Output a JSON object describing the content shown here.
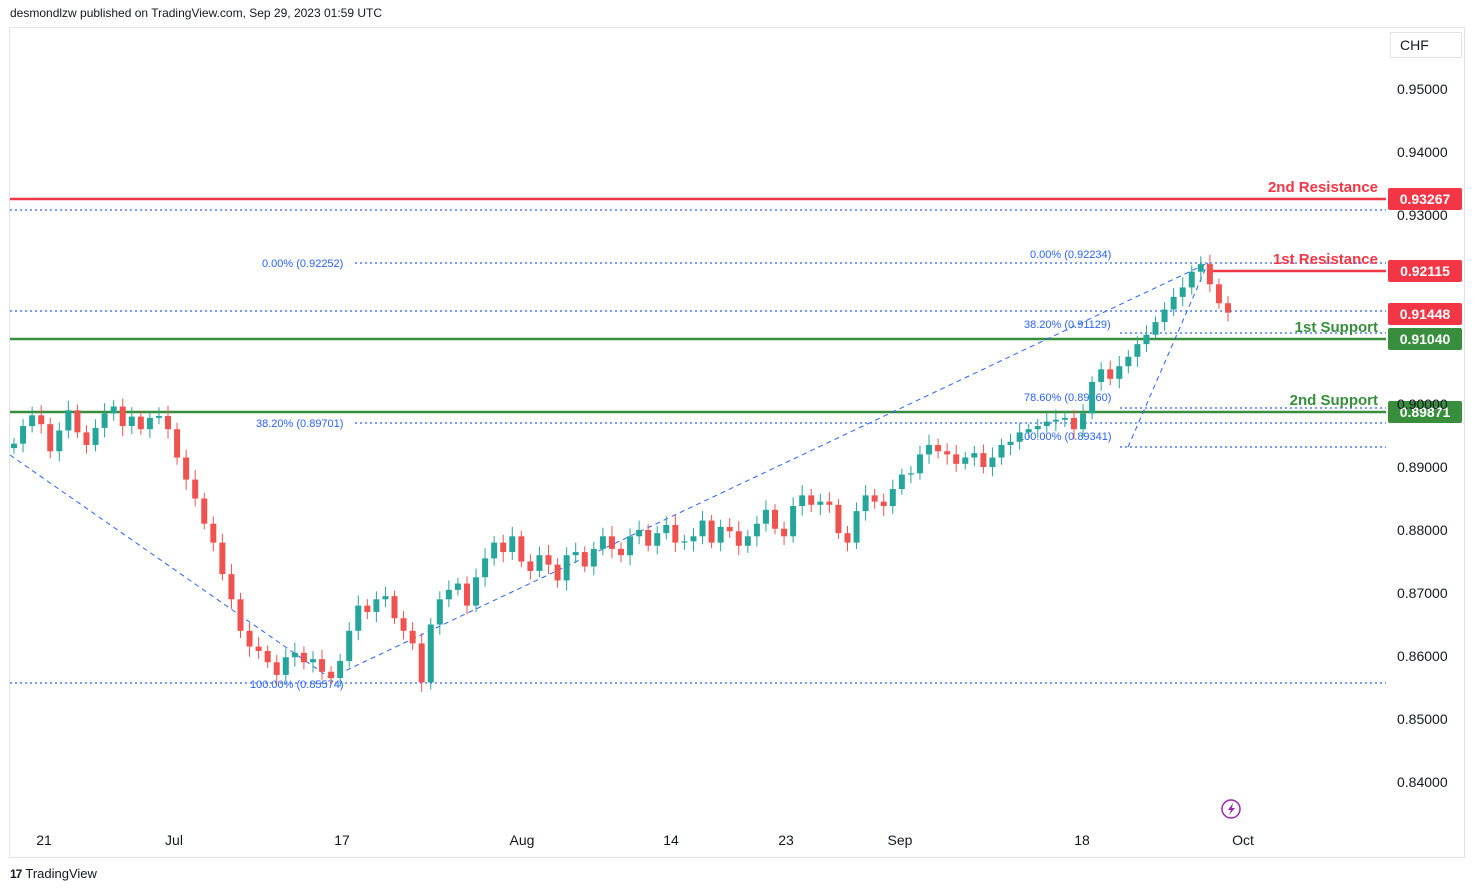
{
  "header": {
    "published": "desmondlzw published on TradingView.com, Sep 29, 2023 01:59 UTC"
  },
  "currency": "CHF",
  "footer": {
    "brand": "TradingView",
    "logo": "17"
  },
  "colors": {
    "up": "#26a69a",
    "down": "#ef5350",
    "resistance": "#f23645",
    "support": "#388e3c",
    "fib": "#2962ff",
    "fibText": "#2962ff",
    "axisText": "#131722",
    "price": "#f23645"
  },
  "chart_data": {
    "type": "candlestick",
    "y_ticks": [
      "0.95000",
      "0.94000",
      "0.93000",
      "0.90000",
      "0.89000",
      "0.88000",
      "0.87000",
      "0.86000",
      "0.85000",
      "0.84000"
    ],
    "x_ticks": [
      "21",
      "Jul",
      "17",
      "Aug",
      "14",
      "23",
      "Sep",
      "18",
      "Oct"
    ],
    "ylim": [
      0.835,
      0.96
    ],
    "levels": [
      {
        "label": "2nd Resistance",
        "value": "0.93267",
        "type": "resistance"
      },
      {
        "label": "1st Resistance",
        "value": "0.92115",
        "type": "resistance"
      },
      {
        "label": "1st Support",
        "value": "0.91040",
        "type": "support"
      },
      {
        "label": "2nd Support",
        "value": "0.89871",
        "type": "support"
      }
    ],
    "current_price": "0.91448",
    "fib_labels": [
      {
        "text": "0.00% (0.92252)"
      },
      {
        "text": "38.20% (0.89701)"
      },
      {
        "text": "100.00% (0.85574)"
      },
      {
        "text": "0.00% (0.92234)"
      },
      {
        "text": "38.20% (0.91129)"
      },
      {
        "text": "78.60% (0.89960)"
      },
      {
        "text": "100.00% (0.89341)"
      }
    ],
    "series": [
      {
        "values": [
          0.8937,
          0.8965,
          0.8982,
          0.8968,
          0.8925,
          0.8958,
          0.899,
          0.8955,
          0.8935,
          0.8962,
          0.8985,
          0.8996,
          0.8965,
          0.898,
          0.896,
          0.8978,
          0.8981,
          0.896,
          0.8915,
          0.888,
          0.885,
          0.881,
          0.878,
          0.873,
          0.869,
          0.864,
          0.8615,
          0.8608,
          0.859,
          0.857,
          0.8598,
          0.8605,
          0.859,
          0.8595,
          0.8575,
          0.8565,
          0.8592,
          0.864,
          0.868,
          0.867,
          0.869,
          0.8695,
          0.866,
          0.864,
          0.862,
          0.8558,
          0.865,
          0.869,
          0.8705,
          0.8715,
          0.868,
          0.8725,
          0.8755,
          0.878,
          0.8765,
          0.879,
          0.875,
          0.8735,
          0.876,
          0.8745,
          0.872,
          0.876,
          0.8765,
          0.8742,
          0.877,
          0.879,
          0.877,
          0.876,
          0.879,
          0.88,
          0.8775,
          0.8795,
          0.8808,
          0.878,
          0.8782,
          0.879,
          0.8815,
          0.878,
          0.8805,
          0.8798,
          0.8775,
          0.879,
          0.881,
          0.8832,
          0.8802,
          0.879,
          0.8838,
          0.8855,
          0.884,
          0.8845,
          0.884,
          0.8795,
          0.878,
          0.883,
          0.8855,
          0.8845,
          0.8838,
          0.8865,
          0.8888,
          0.889,
          0.892,
          0.8935,
          0.8925,
          0.892,
          0.8905,
          0.8915,
          0.8922,
          0.89,
          0.8915,
          0.8935,
          0.894,
          0.8955,
          0.896,
          0.8965,
          0.8972,
          0.8975,
          0.8978,
          0.896,
          0.8985,
          0.9035,
          0.9055,
          0.904,
          0.906,
          0.9075,
          0.9095,
          0.911,
          0.913,
          0.915,
          0.917,
          0.9185,
          0.921,
          0.9222,
          0.919,
          0.916,
          0.9145
        ]
      }
    ]
  }
}
